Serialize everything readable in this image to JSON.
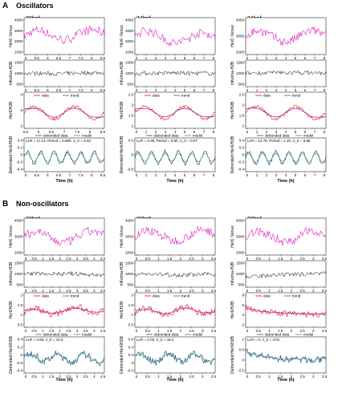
{
  "sections": [
    {
      "letter": "A",
      "title": "Oscillators"
    },
    {
      "letter": "B",
      "title": "Non-oscillators"
    }
  ],
  "series_labels": {
    "data": "data",
    "trend": "trend",
    "detrended": "detrended data",
    "model": "model"
  },
  "time_label": "Time (h)",
  "colors": {
    "venus": "#e020c0",
    "h2b": "#000000",
    "data": "#e01010",
    "trend": "#b020b0",
    "detrended": "#2050a0",
    "model": "#40a040"
  },
  "chart_data": [
    {
      "type": "line",
      "panel": "A1",
      "stage": "30hpf",
      "rows": [
        {
          "ylabel": "Her6::Venus",
          "yticks": [
            "4000",
            "3000",
            "2000",
            "1000"
          ],
          "xticks": [
            "5",
            "5.5",
            "6",
            "6.5",
            "7",
            "7.5",
            "8",
            "8.5"
          ]
        },
        {
          "ylabel": "mKelma-H2B",
          "yticks": [
            "1500",
            "1000",
            "500"
          ],
          "xticks": [
            "5",
            "5.5",
            "6",
            "6.5",
            "7",
            "7.5",
            "8",
            "8.5"
          ]
        },
        {
          "ylabel": "Her6/H2B",
          "yticks": [
            "4",
            "3",
            "2"
          ],
          "xticks": [
            "5.5",
            "6",
            "6.5",
            "7",
            "7.5",
            "8",
            "8.5"
          ]
        },
        {
          "ylabel": "Detrended Her6/H2B",
          "yticks": [
            "0.4",
            "0.2",
            "0",
            "-0.2",
            "-0.4"
          ],
          "xticks": [
            "5",
            "5.5",
            "6",
            "6.5",
            "7",
            "7.5",
            "8",
            "8.5"
          ]
        }
      ],
      "stat": "LLR = 17.14, Period = 0.68h, σ_tr = 0.02"
    },
    {
      "type": "line",
      "panel": "A2",
      "stage": "34hpf",
      "rows": [
        {
          "ylabel": "Her6::Venus",
          "yticks": [
            "4000",
            "3000",
            "2000",
            "1000"
          ],
          "xticks": [
            "0",
            "1",
            "2",
            "3",
            "4",
            "5",
            "6",
            "7",
            "8"
          ]
        },
        {
          "ylabel": "mKelma-H2B",
          "yticks": [
            "1500",
            "1000",
            "500"
          ],
          "xticks": [
            "0",
            "1",
            "2",
            "3",
            "4",
            "5",
            "6",
            "7",
            "8"
          ]
        },
        {
          "ylabel": "Her6/H2B",
          "yticks": [
            "2.5",
            "2",
            "1.5",
            "1"
          ],
          "xticks": [
            "0",
            "1",
            "2",
            "3",
            "4",
            "5",
            "6",
            "7",
            "8"
          ]
        },
        {
          "ylabel": "Detrended Her6/H2B",
          "yticks": [
            "0.5",
            "0",
            "-0.5"
          ],
          "xticks": [
            "0",
            "1",
            "2",
            "3",
            "4",
            "5",
            "6",
            "7",
            "8"
          ]
        }
      ],
      "stat": "LLR = 9.39, Period = 0.6h, σ_tr = 0.57"
    },
    {
      "type": "line",
      "panel": "A3",
      "stage": "34hpf",
      "rows": [
        {
          "ylabel": "Her6::Venus",
          "yticks": [
            "4000",
            "3000",
            "2000"
          ],
          "xticks": [
            "0",
            "1",
            "2",
            "3",
            "4",
            "5",
            "6",
            "7",
            "8"
          ]
        },
        {
          "ylabel": "mKelma-H2B",
          "yticks": [
            "1500",
            "1000",
            "500"
          ],
          "xticks": [
            "0",
            "1",
            "2",
            "3",
            "4",
            "5",
            "6",
            "7",
            "8"
          ]
        },
        {
          "ylabel": "Her6/H2B",
          "yticks": [
            "2.5",
            "2",
            "1.5",
            "1"
          ],
          "xticks": [
            "0",
            "1",
            "2",
            "3",
            "4",
            "5",
            "6",
            "7",
            "8"
          ]
        },
        {
          "ylabel": "Detrended Her6/H2B",
          "yticks": [
            "0.4",
            "0.2",
            "0",
            "-0.2",
            "-0.4"
          ],
          "xticks": [
            "0",
            "1",
            "2",
            "3",
            "4",
            "5",
            "6",
            "7",
            "8"
          ]
        }
      ],
      "stat": "LLR = 12.78, Period = 1.1h, σ_tr = 5.88"
    },
    {
      "type": "line",
      "panel": "B1",
      "stage": "28hpf",
      "rows": [
        {
          "ylabel": "Her6::Venus",
          "yticks": [
            "4000",
            "3000",
            "2000"
          ],
          "xticks": [
            "0",
            "0.5",
            "1",
            "1.5",
            "2",
            "2.5",
            "3",
            "3.5",
            "4",
            "4.5"
          ]
        },
        {
          "ylabel": "mKelma-H2B",
          "yticks": [
            "1500",
            "1000",
            "500"
          ],
          "xticks": [
            "0",
            "0.5",
            "1",
            "1.5",
            "2",
            "2.5",
            "3",
            "3.5",
            "4",
            "4.5"
          ]
        },
        {
          "ylabel": "Her6/H2B",
          "yticks": [
            "2",
            "1.5",
            "1",
            "0.5"
          ],
          "xticks": [
            "0",
            "0.5",
            "1",
            "1.5",
            "2",
            "2.5",
            "3",
            "3.5",
            "4",
            "4.5"
          ]
        },
        {
          "ylabel": "Detrended Her6/H2B",
          "yticks": [
            "0.4",
            "0.2",
            "0",
            "-0.2",
            "-0.4"
          ],
          "xticks": [
            "0",
            "0.5",
            "1",
            "1.5",
            "2",
            "2.5",
            "3",
            "3.5",
            "4",
            "4.5"
          ]
        }
      ],
      "stat": "LLR = 3.85, σ_tr = 12.6"
    },
    {
      "type": "line",
      "panel": "B2",
      "stage": "28hpf",
      "rows": [
        {
          "ylabel": "Her6::Venus",
          "yticks": [
            "4000",
            "3000",
            "2000"
          ],
          "xticks": [
            "0",
            "0.5",
            "1",
            "1.5",
            "2",
            "2.5",
            "3",
            "3.5"
          ]
        },
        {
          "ylabel": "mKelma-H2B",
          "yticks": [
            "1500",
            "1000",
            "500"
          ],
          "xticks": [
            "0",
            "0.5",
            "1",
            "1.5",
            "2",
            "2.5",
            "3",
            "3.5"
          ]
        },
        {
          "ylabel": "Her6/H2B",
          "yticks": [
            "2",
            "1.5",
            "1",
            "0.5"
          ],
          "xticks": [
            "0",
            "0.5",
            "1",
            "1.5",
            "2",
            "2.5",
            "3",
            "3.5"
          ]
        },
        {
          "ylabel": "Detrended Her6/H2B",
          "yticks": [
            "0.6",
            "0.4",
            "0.2",
            "0",
            "-0.2"
          ],
          "xticks": [
            "0",
            "0.5",
            "1",
            "1.5",
            "2",
            "2.5",
            "3",
            "3.5"
          ]
        }
      ],
      "stat": "LLR = 0.02, σ_tr = 18.4"
    },
    {
      "type": "line",
      "panel": "B3",
      "stage": "30hpf",
      "rows": [
        {
          "ylabel": "Her6::Venus",
          "yticks": [
            "4000",
            "3000",
            "2000"
          ],
          "xticks": [
            "0",
            "0.5",
            "1",
            "1.5",
            "2",
            "2.5",
            "3",
            "3.5"
          ]
        },
        {
          "ylabel": "mKelma-H2B",
          "yticks": [
            "1500",
            "1000",
            "500"
          ],
          "xticks": [
            "0",
            "0.5",
            "1",
            "1.5",
            "2",
            "2.5",
            "3",
            "3.5"
          ]
        },
        {
          "ylabel": "Her6/H2B",
          "yticks": [
            "8",
            "6",
            "4",
            "2"
          ],
          "xticks": [
            "0",
            "0.5",
            "1",
            "1.5",
            "2",
            "2.5",
            "3",
            "3.5"
          ]
        },
        {
          "ylabel": "Detrended Her6/H2B",
          "yticks": [
            "1",
            "0.5",
            "0",
            "-0.5"
          ],
          "xticks": [
            "0",
            "0.5",
            "1",
            "1.5",
            "2",
            "2.5",
            "3",
            "3.5"
          ]
        }
      ],
      "stat": "LLR = 0, σ_tr = 3.91"
    }
  ]
}
